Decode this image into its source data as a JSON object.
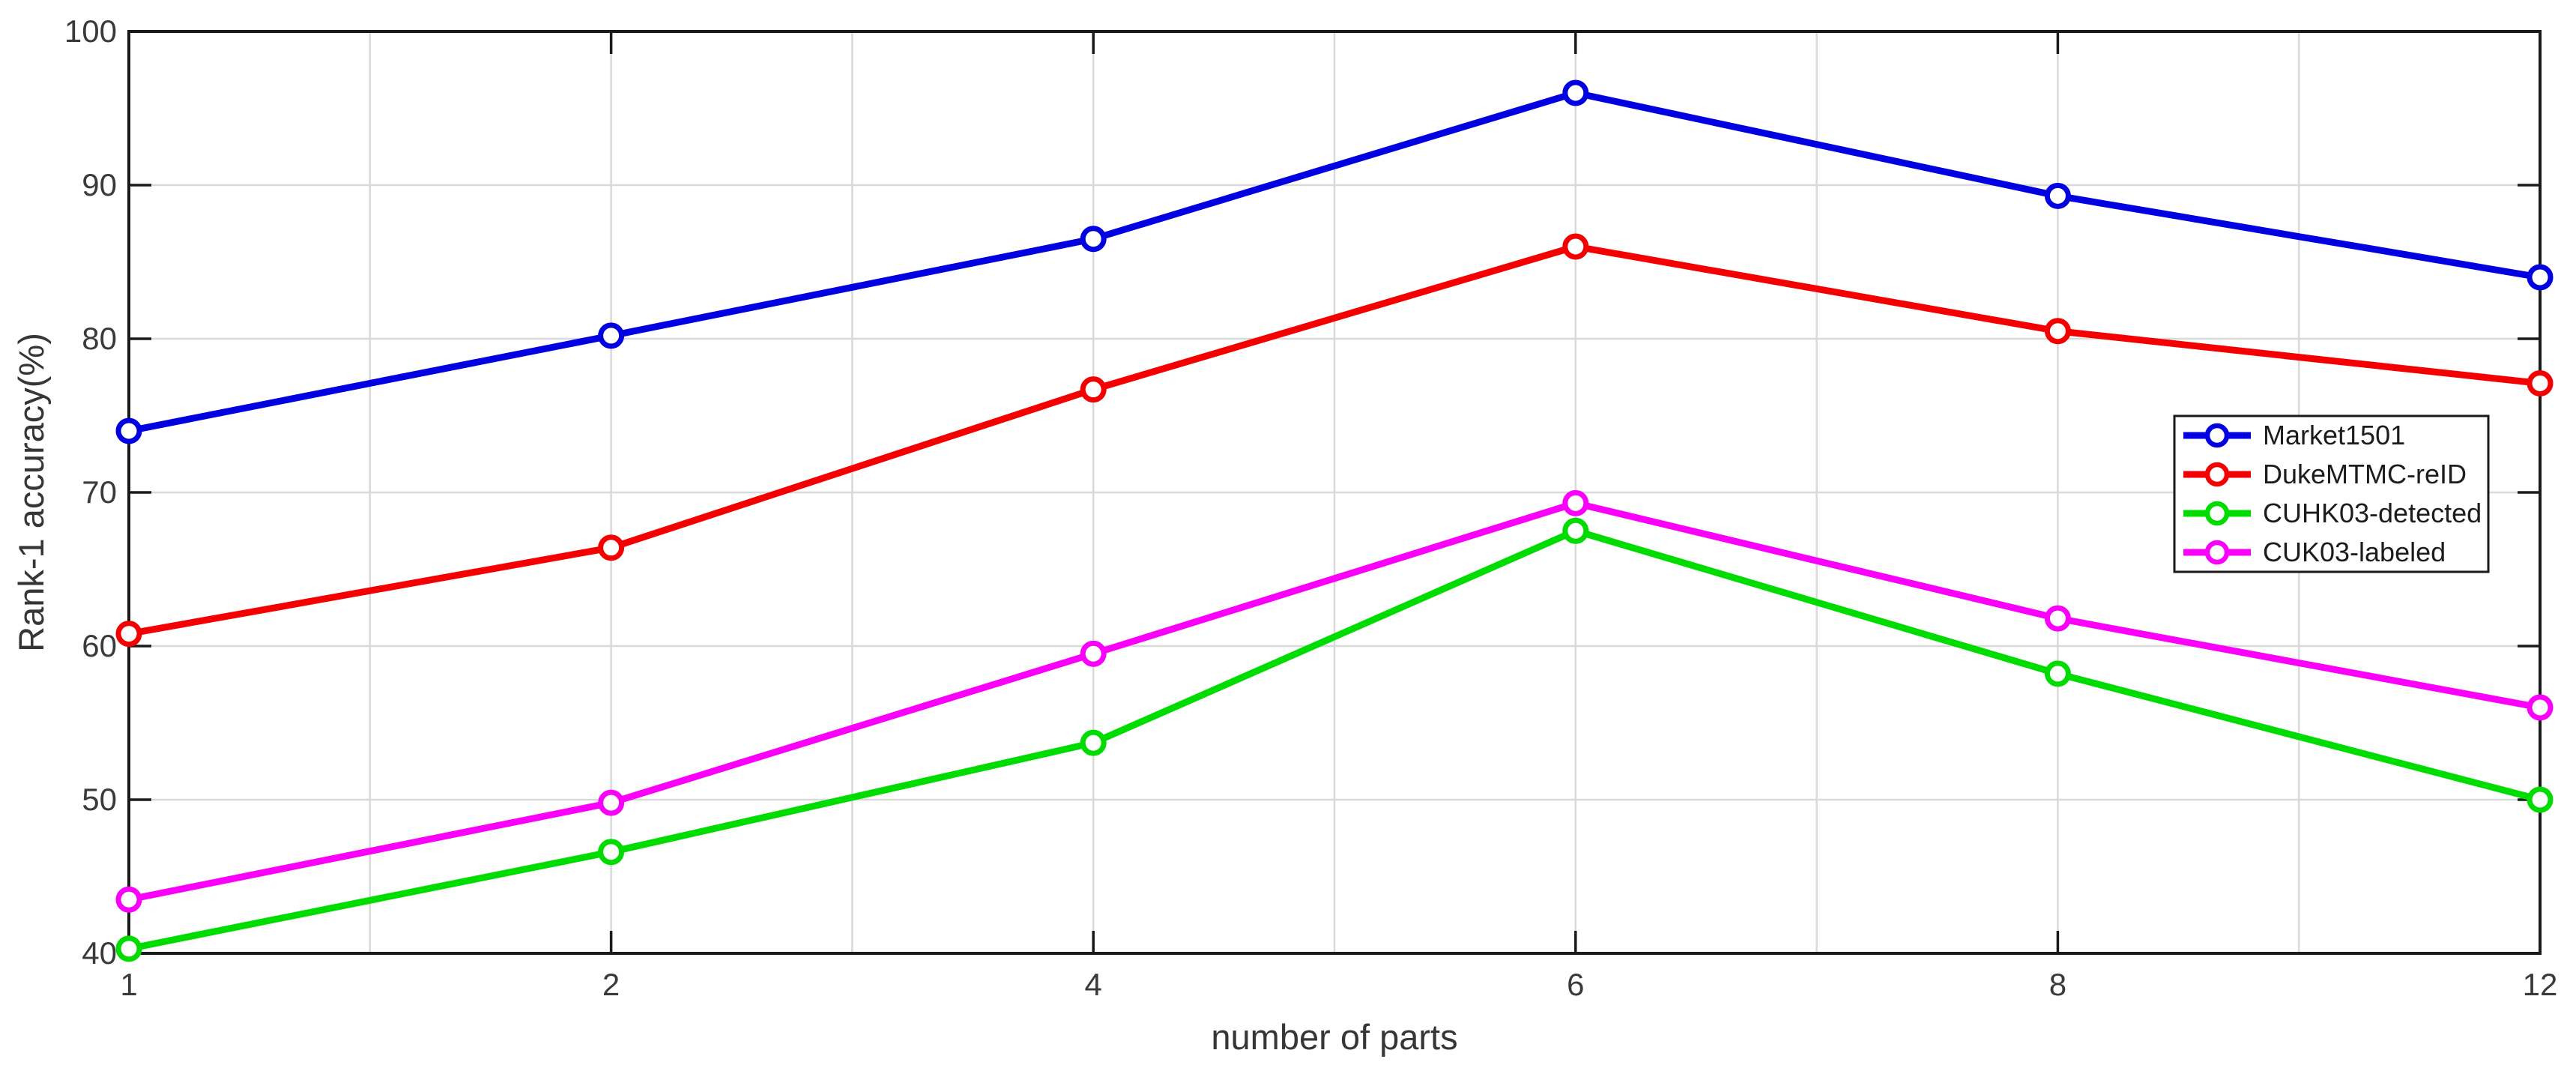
{
  "figure": {
    "background": "#ffffff"
  },
  "chart_data": {
    "type": "line",
    "title": "",
    "xlabel": "number of parts",
    "ylabel": "Rank-1 accuracy(%)",
    "categories": [
      1,
      2,
      4,
      6,
      8,
      12
    ],
    "x_tick_labels": [
      "1",
      "2",
      "4",
      "6",
      "8",
      "12"
    ],
    "y_ticks": [
      40,
      50,
      60,
      70,
      80,
      90,
      100
    ],
    "y_tick_labels": [
      "40",
      "50",
      "60",
      "70",
      "80",
      "90",
      "100"
    ],
    "ylim": [
      40,
      100
    ],
    "grid": true,
    "x_minor_grid": true,
    "legend_position": "upper right inside",
    "marker": "o",
    "series": [
      {
        "name": "Market1501",
        "color": "#0000E0",
        "values": [
          74.0,
          80.2,
          86.5,
          96.0,
          89.3,
          84.0
        ]
      },
      {
        "name": "DukeMTMC-reID",
        "color": "#F40000",
        "values": [
          60.8,
          66.4,
          76.7,
          86.0,
          80.5,
          77.1
        ]
      },
      {
        "name": "CUHK03-detected",
        "color": "#00DC00",
        "values": [
          40.3,
          46.6,
          53.7,
          67.5,
          58.2,
          50.0
        ]
      },
      {
        "name": "CUK03-labeled",
        "color": "#FA00FA",
        "values": [
          43.5,
          49.8,
          59.5,
          69.3,
          61.8,
          56.0
        ]
      }
    ],
    "colors": {
      "grid": "#D9D9D9",
      "axis": "#1a1a1a",
      "tick_text": "#3a3a3a",
      "label_text": "#363636",
      "legend_border": "#1a1a1a",
      "legend_background": "#ffffff",
      "marker_fill": "#ffffff"
    }
  }
}
